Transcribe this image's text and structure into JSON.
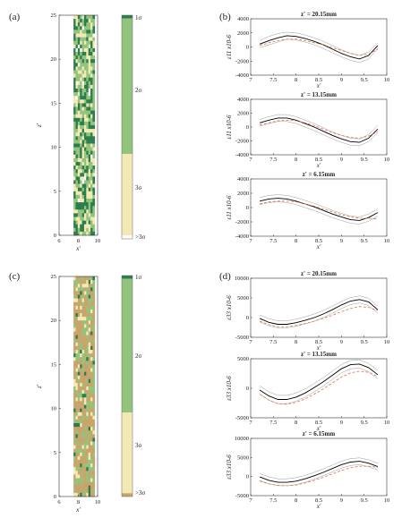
{
  "panel_labels": [
    "(a)",
    "(b)",
    "(c)",
    "(d)"
  ],
  "colors": {
    "sigma1_a": "#2e7d4f",
    "sigma2_a": "#93c47d",
    "sigma3_a": "#f3e9b5",
    "gt3_a": "#ffffff",
    "sigma1_c": "#2e7d4f",
    "sigma2_c": "#93c47d",
    "sigma3_c": "#f3e9b5",
    "gt3_c": "#c9a46b",
    "mean_line": "#000000",
    "band_line": "#999999",
    "dashed_line": "#e07050"
  },
  "maps": [
    {
      "id": "a",
      "xlabel": "x'",
      "ylabel": "z'",
      "xlim": [
        6,
        10
      ],
      "ylim": [
        0,
        25
      ],
      "xticks": [
        "6",
        "8",
        "10"
      ],
      "yticks": [
        "0",
        "5",
        "10",
        "15",
        "20",
        "25"
      ],
      "colorbar_labels": [
        "1σ",
        "2σ",
        "3σ",
        ">3σ"
      ]
    },
    {
      "id": "c",
      "xlabel": "x'",
      "ylabel": "z'",
      "xlim": [
        6,
        10
      ],
      "ylim": [
        0,
        25
      ],
      "xticks": [
        "6",
        "8",
        "10"
      ],
      "yticks": [
        "0",
        "5",
        "10",
        "15",
        "20",
        "25"
      ],
      "colorbar_labels": [
        "1σ",
        "2σ",
        "3σ",
        ">3σ"
      ]
    }
  ],
  "chart_data": [
    {
      "type": "line",
      "panel": "b",
      "title": "z' = 20.15mm",
      "xlabel": "x'",
      "ylabel": "ε11 x10-6",
      "xlim": [
        7,
        10
      ],
      "ylim": [
        -4000,
        4000
      ],
      "xticks": [
        "7",
        "7.5",
        "8",
        "8.5",
        "9",
        "9.5",
        "10"
      ],
      "yticks": [
        "4000",
        "2000",
        "0",
        "-2000",
        "-4000"
      ],
      "x": [
        7.2,
        7.4,
        7.6,
        7.8,
        8.0,
        8.2,
        8.4,
        8.6,
        8.8,
        9.0,
        9.2,
        9.4,
        9.6,
        9.8
      ],
      "series": [
        {
          "values": [
            400,
            900,
            1300,
            1600,
            1500,
            1200,
            800,
            300,
            -300,
            -900,
            -1400,
            -1700,
            -1200,
            200
          ]
        },
        {
          "values": [
            900,
            1500,
            1900,
            2100,
            2000,
            1700,
            1300,
            800,
            200,
            -400,
            -900,
            -1200,
            -700,
            600
          ]
        },
        {
          "values": [
            -100,
            300,
            700,
            1100,
            1000,
            700,
            300,
            -200,
            -800,
            -1400,
            -1900,
            -2200,
            -1700,
            -200
          ]
        },
        {
          "values": [
            200,
            600,
            900,
            1100,
            1100,
            900,
            600,
            300,
            -100,
            -500,
            -900,
            -1200,
            -1000,
            -300
          ]
        }
      ]
    },
    {
      "type": "line",
      "panel": "b",
      "title": "z' = 13.15mm",
      "xlabel": "x'",
      "ylabel": "ε11 x10-6",
      "xlim": [
        7,
        10
      ],
      "ylim": [
        -4000,
        4000
      ],
      "xticks": [
        "7",
        "7.5",
        "8",
        "8.5",
        "9",
        "9.5",
        "10"
      ],
      "yticks": [
        "4000",
        "2000",
        "0",
        "-2000",
        "-4000"
      ],
      "x": [
        7.2,
        7.4,
        7.6,
        7.8,
        8.0,
        8.2,
        8.4,
        8.6,
        8.8,
        9.0,
        9.2,
        9.4,
        9.6,
        9.8
      ],
      "series": [
        {
          "values": [
            600,
            1000,
            1300,
            1300,
            1000,
            500,
            0,
            -600,
            -1200,
            -1700,
            -2100,
            -2200,
            -1600,
            -300
          ]
        },
        {
          "values": [
            1100,
            1500,
            1800,
            1800,
            1500,
            1000,
            500,
            -100,
            -700,
            -1200,
            -1600,
            -1700,
            -1100,
            200
          ]
        },
        {
          "values": [
            100,
            500,
            800,
            800,
            500,
            0,
            -500,
            -1100,
            -1700,
            -2200,
            -2600,
            -2700,
            -2100,
            -800
          ]
        },
        {
          "values": [
            300,
            600,
            900,
            1000,
            900,
            600,
            200,
            -300,
            -800,
            -1200,
            -1500,
            -1600,
            -1300,
            -700
          ]
        }
      ]
    },
    {
      "type": "line",
      "panel": "b",
      "title": "z' = 6.15mm",
      "xlabel": "x'",
      "ylabel": "ε11 x10-6",
      "xlim": [
        7,
        10
      ],
      "ylim": [
        -4000,
        4000
      ],
      "xticks": [
        "7",
        "7.5",
        "8",
        "8.5",
        "9",
        "9.5",
        "10"
      ],
      "yticks": [
        "4000",
        "2000",
        "0",
        "-2000",
        "-4000"
      ],
      "x": [
        7.2,
        7.4,
        7.6,
        7.8,
        8.0,
        8.2,
        8.4,
        8.6,
        8.8,
        9.0,
        9.2,
        9.4,
        9.6,
        9.8
      ],
      "series": [
        {
          "values": [
            900,
            1200,
            1300,
            1200,
            900,
            500,
            100,
            -400,
            -900,
            -1300,
            -1700,
            -1800,
            -1400,
            -700
          ]
        },
        {
          "values": [
            1400,
            1700,
            1800,
            1700,
            1400,
            1000,
            600,
            100,
            -400,
            -800,
            -1200,
            -1300,
            -900,
            -200
          ]
        },
        {
          "values": [
            400,
            700,
            800,
            700,
            400,
            0,
            -400,
            -900,
            -1400,
            -1800,
            -2200,
            -2300,
            -1900,
            -1200
          ]
        },
        {
          "values": [
            500,
            800,
            900,
            900,
            800,
            500,
            200,
            -200,
            -600,
            -1000,
            -1300,
            -1500,
            -1500,
            -1600
          ]
        }
      ]
    },
    {
      "type": "line",
      "panel": "d",
      "title": "z' = 20.15mm",
      "xlabel": "x'",
      "ylabel": "ε33 x10-6",
      "xlim": [
        7,
        10
      ],
      "ylim": [
        -5000,
        10000
      ],
      "xticks": [
        "7",
        "7.5",
        "8",
        "8.5",
        "9",
        "9.5",
        "10"
      ],
      "yticks": [
        "10000",
        "5000",
        "0",
        "-5000"
      ],
      "x": [
        7.2,
        7.4,
        7.6,
        7.8,
        8.0,
        8.2,
        8.4,
        8.6,
        8.8,
        9.0,
        9.2,
        9.4,
        9.6,
        9.8
      ],
      "series": [
        {
          "values": [
            -200,
            -1200,
            -1700,
            -1700,
            -1300,
            -700,
            0,
            900,
            2000,
            3200,
            4200,
            4600,
            4000,
            2000
          ]
        },
        {
          "values": [
            700,
            -300,
            -800,
            -800,
            -400,
            200,
            900,
            1800,
            2900,
            4100,
            5100,
            5500,
            4900,
            2900
          ]
        },
        {
          "values": [
            -1100,
            -2100,
            -2600,
            -2600,
            -2200,
            -1600,
            -900,
            0,
            1100,
            2300,
            3300,
            3700,
            3100,
            1100
          ]
        },
        {
          "values": [
            -900,
            -1800,
            -2300,
            -2300,
            -2000,
            -1500,
            -900,
            -200,
            600,
            1500,
            2300,
            2800,
            2600,
            1800
          ]
        }
      ]
    },
    {
      "type": "line",
      "panel": "d",
      "title": "z' = 13.15mm",
      "xlabel": "x'",
      "ylabel": "ε33 x10-6",
      "xlim": [
        7,
        10
      ],
      "ylim": [
        -5000,
        5000
      ],
      "xticks": [
        "7",
        "7.5",
        "8",
        "8.5",
        "9",
        "9.5",
        "10"
      ],
      "yticks": [
        "5000",
        "0",
        "-5000"
      ],
      "x": [
        7.2,
        7.4,
        7.6,
        7.8,
        8.0,
        8.2,
        8.4,
        8.6,
        8.8,
        9.0,
        9.2,
        9.4,
        9.6,
        9.8
      ],
      "series": [
        {
          "values": [
            -300,
            -1300,
            -1900,
            -1900,
            -1500,
            -800,
            100,
            1100,
            2200,
            3300,
            4000,
            4100,
            3500,
            2300
          ]
        },
        {
          "values": [
            400,
            -600,
            -1200,
            -1200,
            -800,
            -100,
            800,
            1800,
            2900,
            4000,
            4700,
            4800,
            4200,
            3000
          ]
        },
        {
          "values": [
            -1000,
            -2000,
            -2600,
            -2600,
            -2200,
            -1500,
            -600,
            400,
            1500,
            2600,
            3300,
            3400,
            2800,
            1600
          ]
        },
        {
          "values": [
            -1000,
            -2000,
            -2600,
            -2700,
            -2400,
            -1800,
            -1000,
            -100,
            900,
            1900,
            2600,
            2900,
            2700,
            2000
          ]
        }
      ]
    },
    {
      "type": "line",
      "panel": "d",
      "title": "z' = 6.15mm",
      "xlabel": "x'",
      "ylabel": "ε33 x10-6",
      "xlim": [
        7,
        10
      ],
      "ylim": [
        -5000,
        10000
      ],
      "xticks": [
        "7",
        "7.5",
        "8",
        "8.5",
        "9",
        "9.5",
        "10"
      ],
      "yticks": [
        "10000",
        "5000",
        "0",
        "-5000"
      ],
      "x": [
        7.2,
        7.4,
        7.6,
        7.8,
        8.0,
        8.2,
        8.4,
        8.6,
        8.8,
        9.0,
        9.2,
        9.4,
        9.6,
        9.8
      ],
      "series": [
        {
          "values": [
            -100,
            -1000,
            -1500,
            -1500,
            -1200,
            -600,
            200,
            1100,
            2100,
            3100,
            3800,
            4000,
            3500,
            2600
          ]
        },
        {
          "values": [
            800,
            -100,
            -600,
            -600,
            -300,
            300,
            1100,
            2000,
            3000,
            4000,
            4700,
            4900,
            4400,
            3500
          ]
        },
        {
          "values": [
            -1000,
            -1900,
            -2400,
            -2400,
            -2100,
            -1500,
            -700,
            200,
            1200,
            2200,
            2900,
            3100,
            2600,
            1700
          ]
        },
        {
          "values": [
            -1200,
            -1900,
            -2300,
            -2400,
            -2200,
            -1700,
            -1000,
            -200,
            700,
            1600,
            2300,
            2700,
            2700,
            2400
          ]
        }
      ]
    }
  ]
}
